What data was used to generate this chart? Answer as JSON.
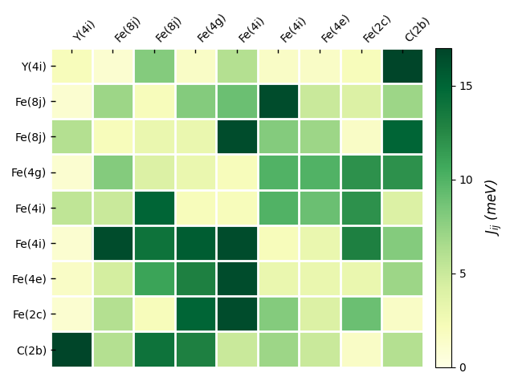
{
  "labels": [
    "Y(4i)",
    "Fe(8j)",
    "Fe(8j)",
    "Fe(4g)",
    "Fe(4i)",
    "Fe(4i)",
    "Fe(4e)",
    "Fe(2c)",
    "C(2b)"
  ],
  "matrix": [
    [
      2.0,
      1.0,
      8.0,
      1.5,
      6.0,
      1.5,
      1.5,
      2.0,
      17.0
    ],
    [
      1.0,
      7.0,
      2.0,
      8.0,
      9.0,
      16.5,
      5.0,
      4.0,
      7.0
    ],
    [
      6.0,
      2.0,
      3.0,
      3.0,
      16.5,
      8.0,
      7.0,
      1.5,
      15.0
    ],
    [
      1.0,
      8.0,
      4.0,
      3.0,
      2.0,
      10.0,
      10.0,
      12.0,
      12.0
    ],
    [
      5.5,
      5.0,
      15.0,
      2.0,
      2.0,
      10.0,
      9.0,
      12.0,
      4.0
    ],
    [
      1.0,
      16.5,
      14.0,
      15.5,
      16.5,
      2.0,
      3.0,
      13.0,
      8.0
    ],
    [
      1.5,
      4.5,
      11.0,
      13.0,
      16.5,
      3.0,
      3.0,
      3.0,
      7.0
    ],
    [
      1.0,
      6.0,
      2.0,
      15.0,
      16.5,
      8.0,
      4.0,
      9.0,
      1.5
    ],
    [
      17.0,
      6.0,
      14.0,
      13.0,
      5.0,
      7.0,
      5.0,
      1.5,
      6.0
    ]
  ],
  "vmin": 0,
  "vmax": 17,
  "cmap": "YlGn",
  "colorbar_label": "$J_{ij}$ (meV)",
  "colorbar_ticks": [
    0,
    5,
    10,
    15
  ],
  "figsize": [
    6.4,
    4.8
  ],
  "dpi": 100,
  "label_fontsize": 10,
  "cbar_fontsize": 12
}
